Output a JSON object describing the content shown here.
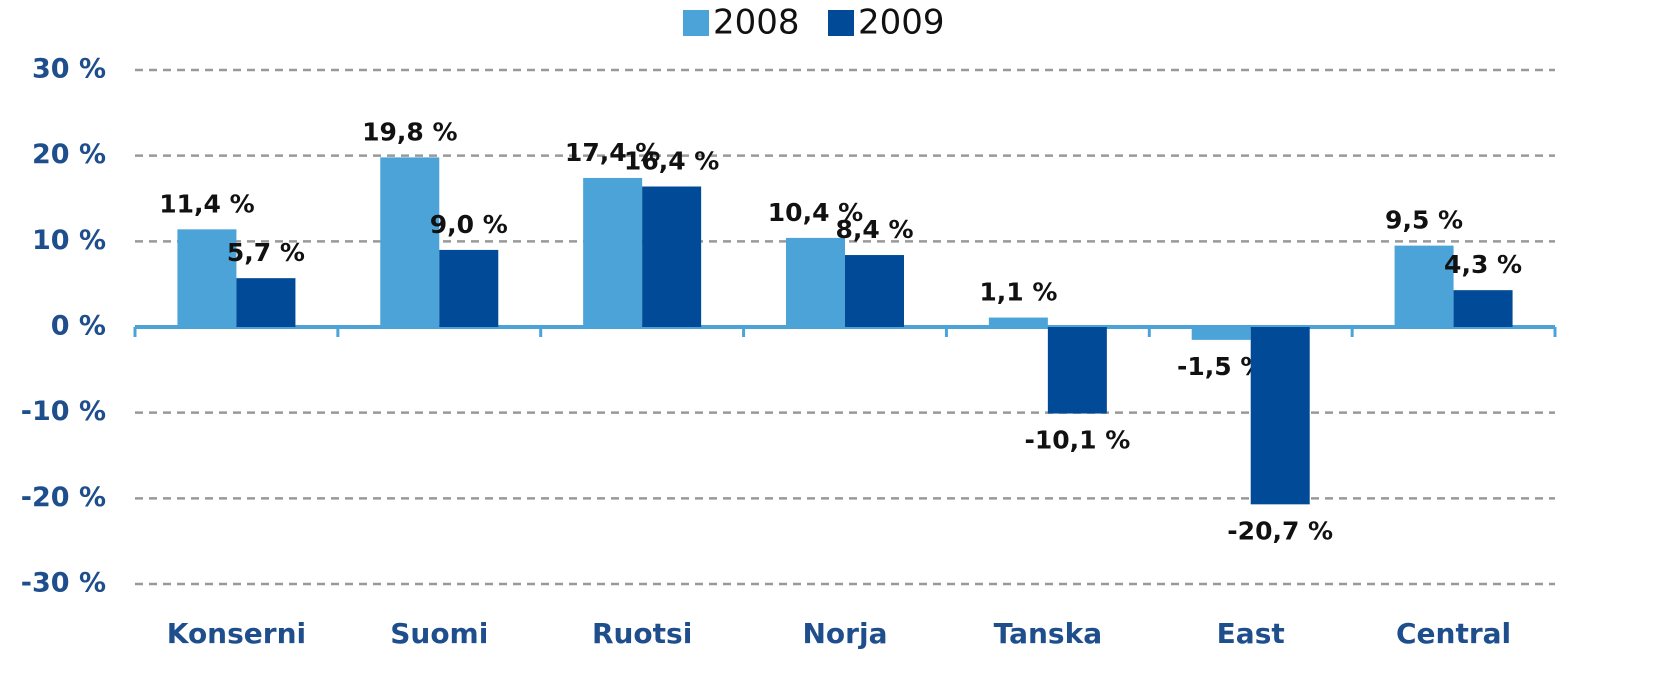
{
  "chart_data": {
    "type": "bar",
    "categories": [
      "Konserni",
      "Suomi",
      "Ruotsi",
      "Norja",
      "Tanska",
      "East",
      "Central"
    ],
    "series": [
      {
        "name": "2008",
        "color": "#4ba3d8",
        "values": [
          11.4,
          19.8,
          17.4,
          10.4,
          1.1,
          -1.5,
          9.5
        ],
        "value_labels": [
          "11,4 %",
          "19,8 %",
          "17,4 %",
          "10,4 %",
          "1,1 %",
          "-1,5 %",
          "9,5 %"
        ]
      },
      {
        "name": "2009",
        "color": "#004a98",
        "values": [
          5.7,
          9.0,
          16.4,
          8.4,
          -10.1,
          -20.7,
          4.3
        ],
        "value_labels": [
          "5,7 %",
          "9,0 %",
          "16,4 %",
          "8,4 %",
          "-10,1 %",
          "-20,7 %",
          "4,3 %"
        ]
      }
    ],
    "ylim": [
      -30,
      30
    ],
    "yticks": [
      {
        "value": -30,
        "label": "-30 %"
      },
      {
        "value": -20,
        "label": "-20 %"
      },
      {
        "value": -10,
        "label": "-10 %"
      },
      {
        "value": 0,
        "label": "0 %"
      },
      {
        "value": 10,
        "label": "10 %"
      },
      {
        "value": 20,
        "label": "20 %"
      },
      {
        "value": 30,
        "label": "30 %"
      }
    ],
    "grid": true,
    "legend": "top"
  }
}
